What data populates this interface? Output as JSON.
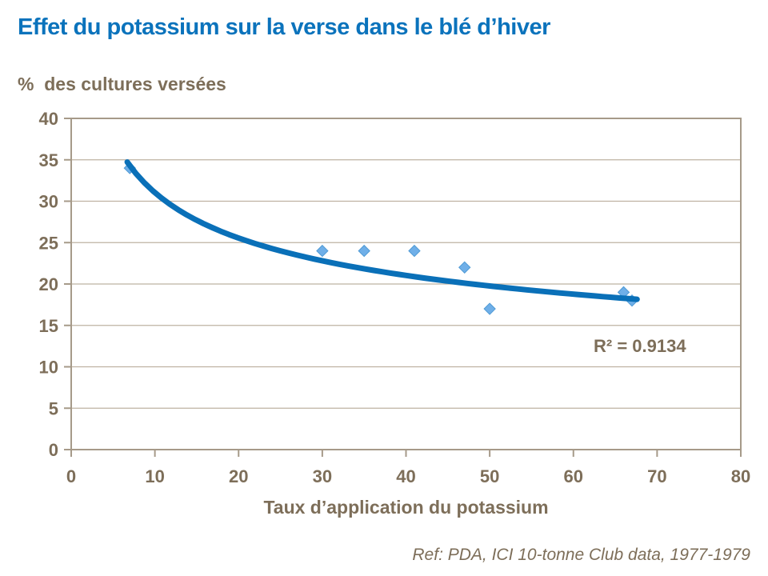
{
  "title": "Effet du potassium sur la verse dans le blé d’hiver",
  "footer": {
    "reference": "Ref: PDA, ICI 10-tonne Club data, 1977-1979"
  },
  "chart_data": {
    "type": "scatter",
    "title": "Effet du potassium sur la verse dans le blé d’hiver",
    "ylabel": "%  des cultures versées",
    "xlabel": "Taux d’application du potassium",
    "xlim": [
      0,
      80
    ],
    "ylim": [
      0,
      40
    ],
    "x_ticks": [
      0,
      10,
      20,
      30,
      40,
      50,
      60,
      70,
      80
    ],
    "y_ticks": [
      0,
      5,
      10,
      15,
      20,
      25,
      30,
      35,
      40
    ],
    "grid": "horizontal",
    "legend": "none",
    "points": [
      {
        "x": 7,
        "y": 34
      },
      {
        "x": 30,
        "y": 24
      },
      {
        "x": 35,
        "y": 24
      },
      {
        "x": 41,
        "y": 24
      },
      {
        "x": 47,
        "y": 22
      },
      {
        "x": 50,
        "y": 17
      },
      {
        "x": 66,
        "y": 19
      },
      {
        "x": 67,
        "y": 18
      }
    ],
    "trendline": {
      "type": "power",
      "a": 59.2,
      "b": -0.2805,
      "x_start": 6.7,
      "x_end": 67.6
    },
    "annotation": "R² = 0.9134",
    "colors": {
      "title_blue": "#0B73BC",
      "trend_blue": "#0A70B8",
      "marker_fill": "#6FAFE8",
      "marker_stroke": "#4E9AD5",
      "text_brown": "#7D6E59",
      "axis_border": "#A69A89",
      "gridline": "#BEB2A2"
    }
  }
}
